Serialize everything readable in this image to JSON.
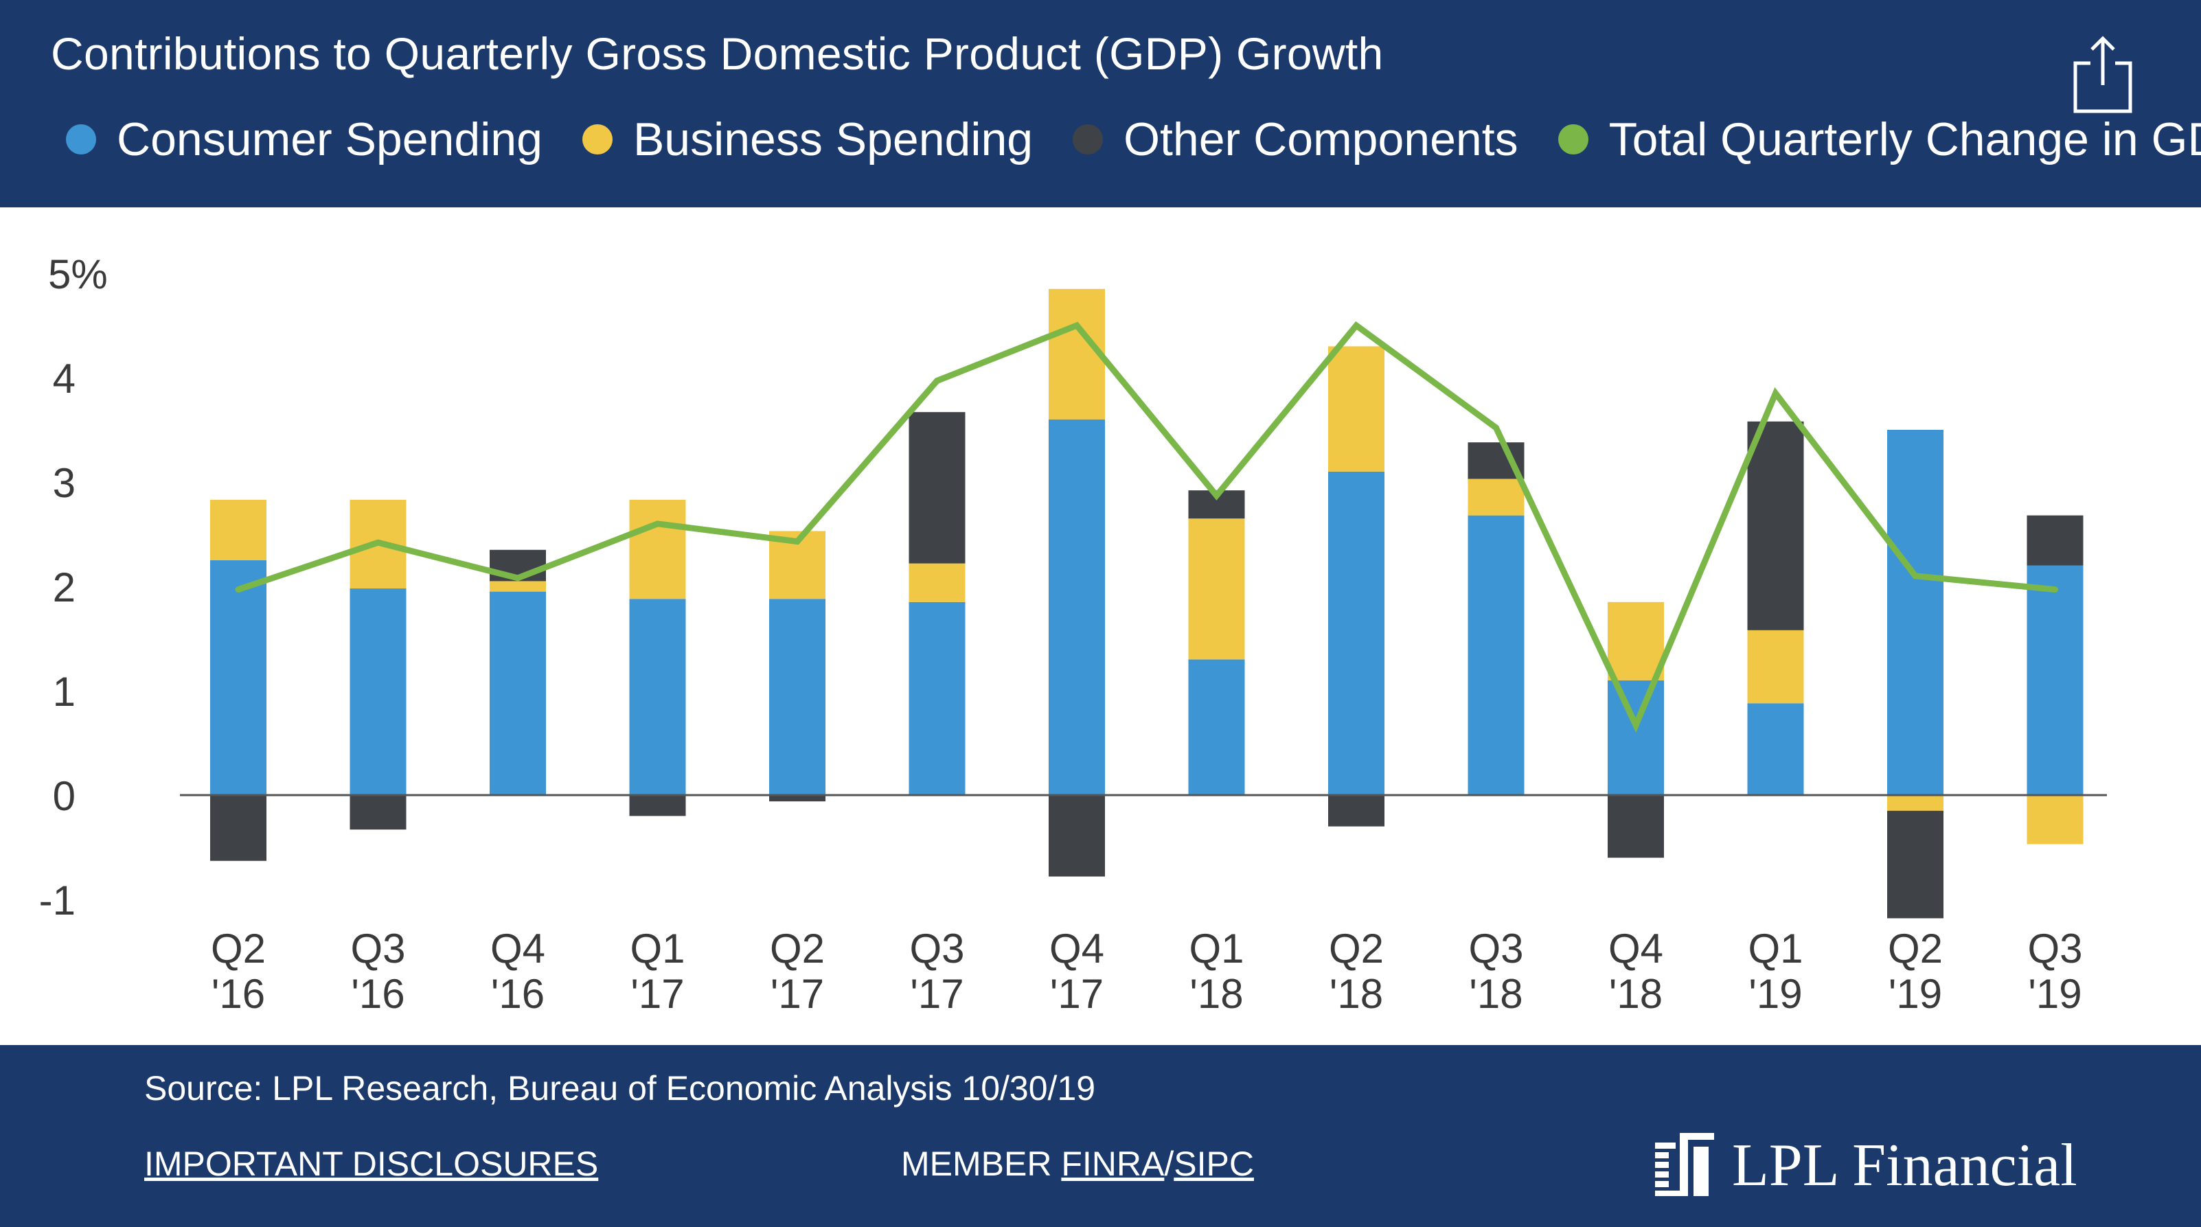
{
  "header": {
    "title": "Contributions to Quarterly Gross Domestic Product (GDP) Growth",
    "share_icon": "share-icon"
  },
  "legend": [
    {
      "label": "Consumer Spending",
      "color": "#3d95d3"
    },
    {
      "label": "Business Spending",
      "color": "#f0c846"
    },
    {
      "label": "Other Components",
      "color": "#3f4247"
    },
    {
      "label": "Total Quarterly Change in GDP",
      "color": "#7ab648"
    }
  ],
  "chart_data": {
    "type": "bar",
    "stacked": true,
    "title": "Contributions to Quarterly Gross Domestic Product (GDP) Growth",
    "xlabel": "",
    "ylabel": "",
    "ylim": [
      -1.3,
      5
    ],
    "yticks": [
      -1,
      0,
      1,
      2,
      3,
      4,
      5
    ],
    "ytick_labels": [
      "-1",
      "0",
      "1",
      "2",
      "3",
      "4",
      "5%"
    ],
    "categories": [
      [
        "Q2",
        "'16"
      ],
      [
        "Q3",
        "'16"
      ],
      [
        "Q4",
        "'16"
      ],
      [
        "Q1",
        "'17"
      ],
      [
        "Q2",
        "'17"
      ],
      [
        "Q3",
        "'17"
      ],
      [
        "Q4",
        "'17"
      ],
      [
        "Q1",
        "'18"
      ],
      [
        "Q2",
        "'18"
      ],
      [
        "Q3",
        "'18"
      ],
      [
        "Q4",
        "'18"
      ],
      [
        "Q1",
        "'19"
      ],
      [
        "Q2",
        "'19"
      ],
      [
        "Q3",
        "'19"
      ]
    ],
    "series": [
      {
        "name": "Consumer Spending",
        "color": "#3d95d3",
        "values": [
          2.25,
          1.98,
          1.95,
          1.88,
          1.88,
          1.85,
          3.6,
          1.3,
          3.1,
          2.68,
          1.1,
          0.88,
          3.5,
          2.2
        ]
      },
      {
        "name": "Business Spending",
        "color": "#f0c846",
        "values": [
          0.58,
          0.85,
          0.1,
          0.95,
          0.65,
          0.37,
          1.25,
          1.35,
          1.2,
          0.35,
          0.75,
          0.7,
          -0.15,
          -0.47
        ]
      },
      {
        "name": "Other Components",
        "color": "#3f4247",
        "values": [
          -0.63,
          -0.33,
          0.3,
          -0.2,
          -0.06,
          1.45,
          -0.78,
          0.27,
          -0.3,
          0.35,
          -0.6,
          2.0,
          -1.03,
          0.48
        ]
      }
    ],
    "line": {
      "name": "Total Quarterly Change in GDP",
      "color": "#7ab648",
      "values": [
        1.97,
        2.42,
        2.08,
        2.6,
        2.43,
        3.97,
        4.5,
        2.87,
        4.5,
        3.52,
        0.67,
        3.85,
        2.1,
        1.97
      ]
    }
  },
  "footer": {
    "source": "Source: LPL Research, Bureau of Economic Analysis  10/30/19",
    "disclosures": "IMPORTANT DISCLOSURES",
    "member_prefix": "MEMBER ",
    "finra": "FINRA",
    "separator": "/",
    "sipc": "SIPC",
    "brand": "LPL Financial",
    "brand_icon": "lpl-logo-icon"
  }
}
